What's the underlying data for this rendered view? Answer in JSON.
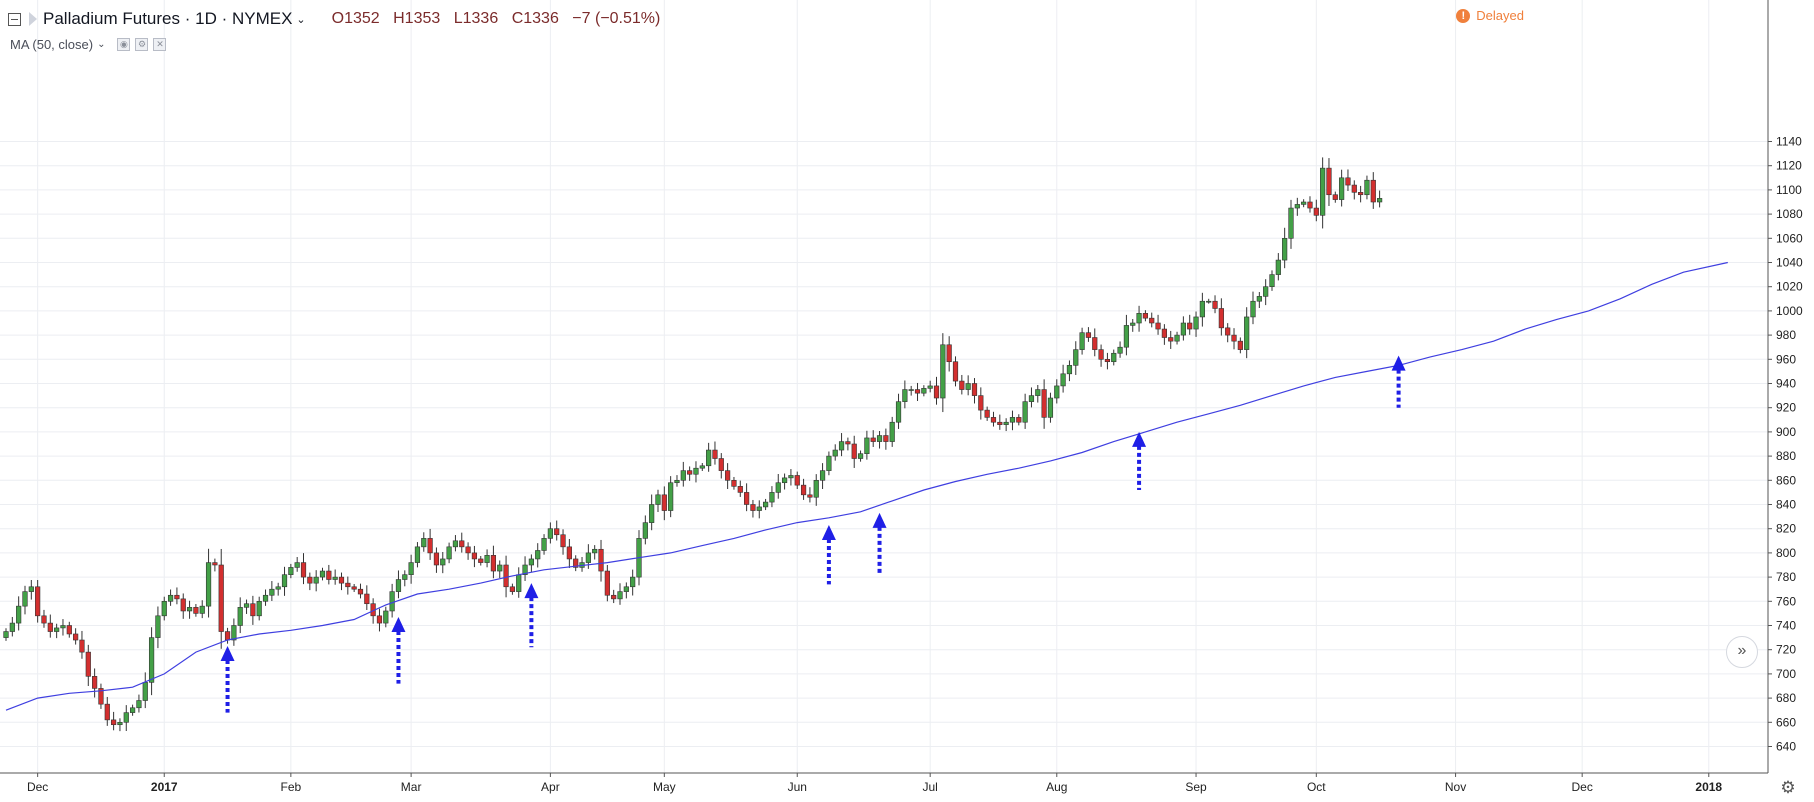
{
  "header": {
    "symbol": "Palladium Futures · 1D · NYMEX",
    "open": "O1352",
    "high": "H1353",
    "low": "L1336",
    "close": "C1336",
    "change": "−7 (−0.51%)",
    "delayed_label": "Delayed",
    "delayed_icon": "!"
  },
  "indicator": {
    "label": "MA (50, close)"
  },
  "icons": [
    "collapse-icon",
    "flag-icon",
    "chevron-down-icon",
    "eye-icon",
    "settings-icon",
    "close-icon",
    "scroll-right-icon",
    "gear-icon"
  ],
  "colors": {
    "up": "#43a047",
    "down": "#d32f2f",
    "ma": "#3f3fe0",
    "arrow": "#1f1fe6",
    "grid": "#eceef2"
  },
  "chart_data": {
    "type": "candlestick",
    "ylim": [
      630,
      1145
    ],
    "y_ticks": [
      640,
      660,
      680,
      700,
      720,
      740,
      760,
      780,
      800,
      820,
      840,
      860,
      880,
      900,
      920,
      940,
      960,
      980,
      1000,
      1020,
      1040,
      1060,
      1080,
      1100,
      1120,
      1140
    ],
    "x_ticks": [
      {
        "label": "Dec",
        "i": 5,
        "bold": false
      },
      {
        "label": "2017",
        "i": 25,
        "bold": true
      },
      {
        "label": "Feb",
        "i": 45,
        "bold": false
      },
      {
        "label": "Mar",
        "i": 64,
        "bold": false
      },
      {
        "label": "Apr",
        "i": 86,
        "bold": false
      },
      {
        "label": "May",
        "i": 104,
        "bold": false
      },
      {
        "label": "Jun",
        "i": 125,
        "bold": false
      },
      {
        "label": "Jul",
        "i": 146,
        "bold": false
      },
      {
        "label": "Aug",
        "i": 166,
        "bold": false
      },
      {
        "label": "Sep",
        "i": 188,
        "bold": false
      },
      {
        "label": "Oct",
        "i": 207,
        "bold": false
      },
      {
        "label": "Nov",
        "i": 229,
        "bold": false
      },
      {
        "label": "Dec",
        "i": 249,
        "bold": false
      },
      {
        "label": "2018",
        "i": 269,
        "bold": true
      }
    ],
    "close": [
      735,
      742,
      756,
      768,
      772,
      748,
      742,
      735,
      738,
      740,
      733,
      728,
      718,
      698,
      688,
      675,
      662,
      658,
      660,
      668,
      672,
      678,
      693,
      730,
      748,
      760,
      765,
      762,
      752,
      755,
      750,
      756,
      792,
      790,
      735,
      728,
      740,
      755,
      758,
      748,
      760,
      765,
      770,
      772,
      782,
      788,
      792,
      780,
      775,
      780,
      785,
      778,
      780,
      775,
      772,
      770,
      766,
      758,
      748,
      742,
      752,
      768,
      778,
      782,
      792,
      805,
      812,
      800,
      790,
      795,
      805,
      810,
      805,
      800,
      795,
      792,
      798,
      785,
      790,
      772,
      768,
      782,
      790,
      795,
      802,
      812,
      820,
      815,
      805,
      795,
      788,
      792,
      800,
      803,
      785,
      765,
      762,
      768,
      772,
      780,
      812,
      825,
      840,
      848,
      835,
      858,
      860,
      868,
      865,
      870,
      872,
      885,
      878,
      868,
      860,
      855,
      850,
      840,
      835,
      838,
      842,
      850,
      858,
      862,
      864,
      856,
      848,
      846,
      860,
      868,
      880,
      885,
      892,
      890,
      878,
      882,
      895,
      892,
      897,
      892,
      908,
      925,
      935,
      935,
      932,
      936,
      938,
      928,
      972,
      958,
      942,
      935,
      940,
      930,
      918,
      912,
      908,
      906,
      908,
      912,
      908,
      925,
      930,
      935,
      912,
      928,
      938,
      948,
      955,
      968,
      982,
      978,
      968,
      960,
      958,
      965,
      970,
      988,
      990,
      998,
      994,
      990,
      985,
      978,
      975,
      980,
      990,
      985,
      995,
      1008,
      1008,
      1002,
      986,
      980,
      975,
      968,
      995,
      1008,
      1012,
      1020,
      1030,
      1042,
      1060,
      1085,
      1088,
      1090,
      1085,
      1079,
      1118,
      1096,
      1092,
      1110,
      1104,
      1098,
      1096,
      1108,
      1090,
      1093
    ],
    "open": [
      730,
      735,
      742,
      756,
      768,
      772,
      748,
      742,
      735,
      738,
      740,
      733,
      728,
      718,
      698,
      688,
      675,
      662,
      658,
      660,
      668,
      672,
      678,
      693,
      730,
      748,
      760,
      765,
      762,
      752,
      755,
      750,
      756,
      792,
      790,
      735,
      728,
      740,
      755,
      758,
      748,
      760,
      765,
      770,
      772,
      782,
      788,
      792,
      780,
      775,
      780,
      785,
      778,
      780,
      775,
      772,
      770,
      766,
      758,
      748,
      742,
      752,
      768,
      778,
      782,
      792,
      805,
      812,
      800,
      790,
      795,
      805,
      810,
      805,
      800,
      795,
      792,
      798,
      785,
      790,
      772,
      768,
      782,
      790,
      795,
      802,
      812,
      820,
      815,
      805,
      795,
      788,
      792,
      800,
      803,
      785,
      765,
      762,
      768,
      772,
      780,
      812,
      825,
      840,
      848,
      835,
      858,
      860,
      868,
      865,
      870,
      872,
      885,
      878,
      868,
      860,
      855,
      850,
      840,
      835,
      838,
      842,
      850,
      858,
      862,
      864,
      856,
      848,
      846,
      860,
      868,
      880,
      885,
      892,
      890,
      878,
      882,
      895,
      892,
      897,
      892,
      908,
      925,
      935,
      935,
      932,
      936,
      938,
      928,
      972,
      958,
      942,
      935,
      940,
      930,
      918,
      912,
      908,
      906,
      908,
      912,
      908,
      925,
      930,
      935,
      912,
      928,
      938,
      948,
      955,
      968,
      982,
      978,
      968,
      960,
      958,
      965,
      970,
      988,
      990,
      998,
      994,
      990,
      985,
      978,
      975,
      980,
      990,
      985,
      995,
      1008,
      1008,
      1002,
      986,
      980,
      975,
      968,
      995,
      1008,
      1012,
      1020,
      1030,
      1042,
      1060,
      1085,
      1088,
      1090,
      1085,
      1079,
      1118,
      1096,
      1092,
      1110,
      1104,
      1098,
      1096,
      1108,
      1090
    ],
    "ma50_anchors": [
      [
        0,
        670
      ],
      [
        5,
        680
      ],
      [
        10,
        684
      ],
      [
        15,
        686
      ],
      [
        20,
        689
      ],
      [
        25,
        700
      ],
      [
        30,
        718
      ],
      [
        35,
        728
      ],
      [
        40,
        733
      ],
      [
        45,
        736
      ],
      [
        50,
        740
      ],
      [
        55,
        745
      ],
      [
        60,
        757
      ],
      [
        65,
        766
      ],
      [
        70,
        770
      ],
      [
        75,
        775
      ],
      [
        80,
        781
      ],
      [
        85,
        786
      ],
      [
        90,
        789
      ],
      [
        95,
        792
      ],
      [
        100,
        796
      ],
      [
        105,
        800
      ],
      [
        110,
        806
      ],
      [
        115,
        812
      ],
      [
        120,
        819
      ],
      [
        125,
        825
      ],
      [
        130,
        829
      ],
      [
        135,
        834
      ],
      [
        140,
        843
      ],
      [
        145,
        852
      ],
      [
        150,
        859
      ],
      [
        155,
        865
      ],
      [
        160,
        870
      ],
      [
        165,
        876
      ],
      [
        170,
        883
      ],
      [
        175,
        892
      ],
      [
        180,
        900
      ],
      [
        185,
        908
      ],
      [
        190,
        915
      ],
      [
        195,
        922
      ],
      [
        200,
        930
      ],
      [
        205,
        938
      ],
      [
        210,
        945
      ],
      [
        215,
        950
      ],
      [
        220,
        955
      ],
      [
        225,
        962
      ],
      [
        230,
        968
      ],
      [
        235,
        975
      ],
      [
        240,
        985
      ],
      [
        245,
        993
      ],
      [
        250,
        1000
      ],
      [
        255,
        1010
      ],
      [
        260,
        1022
      ],
      [
        265,
        1032
      ],
      [
        272,
        1040
      ]
    ],
    "arrows": [
      {
        "i": 35,
        "tip": 728,
        "tail": 668
      },
      {
        "i": 62,
        "tip": 752,
        "tail": 692
      },
      {
        "i": 83,
        "tip": 780,
        "tail": 722
      },
      {
        "i": 130,
        "tip": 828,
        "tail": 774
      },
      {
        "i": 138,
        "tip": 838,
        "tail": 782
      },
      {
        "i": 179,
        "tip": 905,
        "tail": 852
      },
      {
        "i": 220,
        "tip": 968,
        "tail": 920
      }
    ]
  }
}
